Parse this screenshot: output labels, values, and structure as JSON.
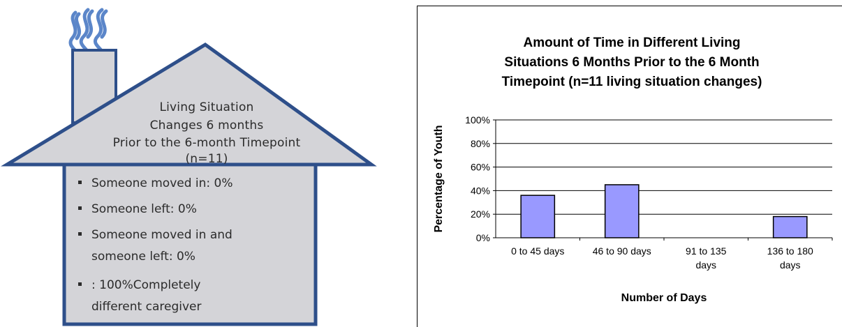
{
  "house": {
    "title_lines": [
      "Living Situation",
      "Changes 6 months",
      "Prior to the 6-month Timepoint",
      "(n=11)"
    ],
    "bullets": [
      {
        "lines": [
          "Someone moved in: 0%"
        ]
      },
      {
        "lines": [
          "Someone left:  0%"
        ]
      },
      {
        "lines": [
          "Someone moved in and",
          "someone left:  0%"
        ]
      },
      {
        "lines": [
          ": 100%Completely",
          "different caregiver"
        ]
      }
    ],
    "colors": {
      "fill": "#d4d4d8",
      "outline": "#2e4f8a",
      "smoke": "#5b86c9"
    },
    "icons": [
      "chimney-smoke-icon"
    ]
  },
  "chart_data": {
    "type": "bar",
    "title_lines": [
      "Amount of Time in Different Living",
      "Situations 6 Months Prior to the 6 Month",
      "Timepoint (n=11 living situation changes)"
    ],
    "categories": [
      [
        "0 to 45 days"
      ],
      [
        "46 to 90 days"
      ],
      [
        "91 to 135",
        "days"
      ],
      [
        "136 to 180",
        "days"
      ]
    ],
    "values": [
      36,
      45,
      0,
      18
    ],
    "ylim": [
      0,
      100
    ],
    "yticks": [
      "0%",
      "20%",
      "40%",
      "60%",
      "80%",
      "100%"
    ],
    "ylabel": "Percentage of Youth",
    "xlabel": "Number of Days",
    "grid": true,
    "bar_color": "#9999ff"
  }
}
